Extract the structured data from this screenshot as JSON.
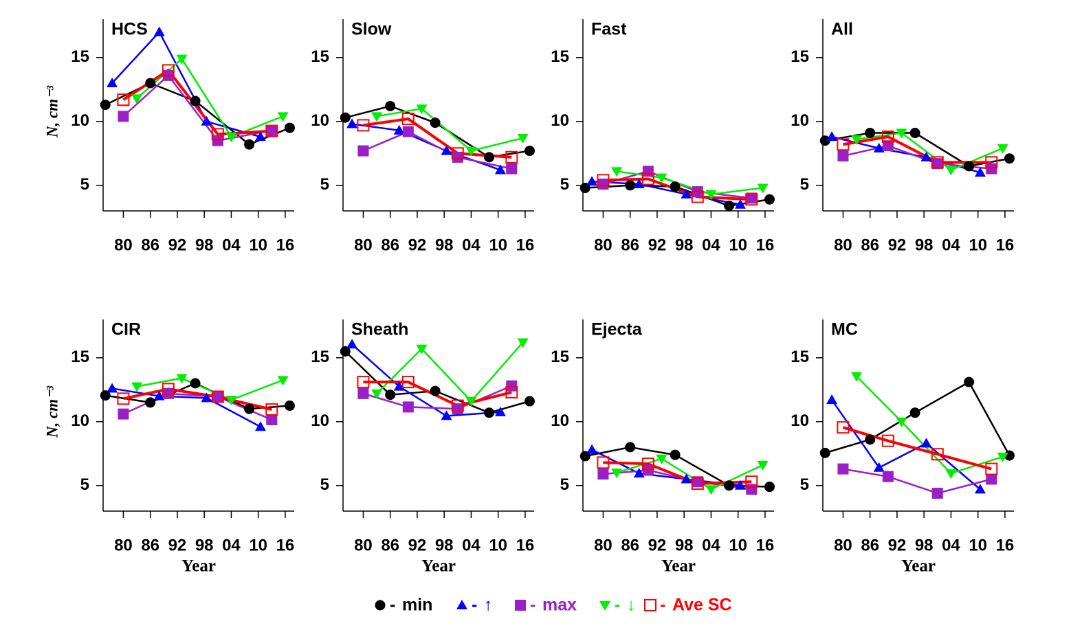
{
  "chart_data": [
    {
      "type": "line",
      "title": "HCS",
      "ylabel": "N, cm⁻³",
      "xlim": [
        1975.5,
        2018
      ],
      "ylim": [
        3,
        18
      ],
      "xticks": [
        {
          "value": 1980,
          "label": "80"
        },
        {
          "value": 1986,
          "label": "86"
        },
        {
          "value": 1992,
          "label": "92"
        },
        {
          "value": 1998,
          "label": "98"
        },
        {
          "value": 2004,
          "label": "04"
        },
        {
          "value": 2010,
          "label": "10"
        },
        {
          "value": 2016,
          "label": "16"
        }
      ],
      "yticks": [
        5,
        10,
        15
      ],
      "series": [
        {
          "name": "min",
          "color": "#000000",
          "marker": "circle",
          "x": [
            1976,
            1986,
            1996,
            2008,
            2017
          ],
          "values": [
            11.3,
            13.0,
            11.6,
            8.2,
            9.5
          ]
        },
        {
          "name": "↑",
          "color": "#0000ff",
          "marker": "triangle-up",
          "x": [
            1977.5,
            1988,
            1998.5,
            2010.5
          ],
          "values": [
            13.0,
            17.0,
            10.0,
            8.8
          ]
        },
        {
          "name": "max",
          "color": "#9b1fc8",
          "marker": "square",
          "x": [
            1980,
            1990,
            2001,
            2013
          ],
          "values": [
            10.4,
            13.6,
            8.5,
            9.3
          ]
        },
        {
          "name": "↓",
          "color": "#00ee00",
          "marker": "triangle-down",
          "x": [
            1983,
            1993,
            2004,
            2015.5
          ],
          "values": [
            11.8,
            14.9,
            8.8,
            10.4
          ]
        },
        {
          "name": "Ave SC",
          "color": "#ff0000",
          "marker": "square-open",
          "x": [
            1980,
            1990,
            2001,
            2013
          ],
          "values": [
            11.7,
            14.0,
            9.0,
            9.25
          ]
        }
      ]
    },
    {
      "type": "line",
      "title": "Slow",
      "xlim": [
        1975.5,
        2018
      ],
      "ylim": [
        3,
        18
      ],
      "xticks": [
        {
          "value": 1980,
          "label": "80"
        },
        {
          "value": 1986,
          "label": "86"
        },
        {
          "value": 1992,
          "label": "92"
        },
        {
          "value": 1998,
          "label": "98"
        },
        {
          "value": 2004,
          "label": "04"
        },
        {
          "value": 2010,
          "label": "10"
        },
        {
          "value": 2016,
          "label": "16"
        }
      ],
      "yticks": [
        5,
        10,
        15
      ],
      "series": [
        {
          "name": "min",
          "color": "#000000",
          "marker": "circle",
          "x": [
            1976,
            1986,
            1996,
            2008,
            2017
          ],
          "values": [
            10.3,
            11.2,
            9.9,
            7.2,
            7.7
          ]
        },
        {
          "name": "↑",
          "color": "#0000ff",
          "marker": "triangle-up",
          "x": [
            1977.5,
            1988,
            1998.5,
            2010.5
          ],
          "values": [
            9.8,
            9.3,
            7.7,
            6.2
          ]
        },
        {
          "name": "max",
          "color": "#9b1fc8",
          "marker": "square",
          "x": [
            1980,
            1990,
            2001,
            2013
          ],
          "values": [
            7.7,
            9.2,
            7.2,
            6.3
          ]
        },
        {
          "name": "↓",
          "color": "#00ee00",
          "marker": "triangle-down",
          "x": [
            1983,
            1993,
            2004,
            2015.5
          ],
          "values": [
            10.4,
            11.0,
            7.7,
            8.7
          ]
        },
        {
          "name": "Ave SC",
          "color": "#ff0000",
          "marker": "square-open",
          "x": [
            1980,
            1990,
            2001,
            2013
          ],
          "values": [
            9.7,
            10.2,
            7.5,
            7.2
          ]
        }
      ]
    },
    {
      "type": "line",
      "title": "Fast",
      "xlim": [
        1975.5,
        2018
      ],
      "ylim": [
        3,
        18
      ],
      "xticks": [
        {
          "value": 1980,
          "label": "80"
        },
        {
          "value": 1986,
          "label": "86"
        },
        {
          "value": 1992,
          "label": "92"
        },
        {
          "value": 1998,
          "label": "98"
        },
        {
          "value": 2004,
          "label": "04"
        },
        {
          "value": 2010,
          "label": "10"
        },
        {
          "value": 2016,
          "label": "16"
        }
      ],
      "yticks": [
        5,
        10,
        15
      ],
      "series": [
        {
          "name": "min",
          "color": "#000000",
          "marker": "circle",
          "x": [
            1976,
            1986,
            1996,
            2008,
            2017
          ],
          "values": [
            4.8,
            5.0,
            4.9,
            3.4,
            3.9
          ]
        },
        {
          "name": "↑",
          "color": "#0000ff",
          "marker": "triangle-up",
          "x": [
            1977.5,
            1988,
            1998.5,
            2010.5
          ],
          "values": [
            5.3,
            5.1,
            4.3,
            3.5
          ]
        },
        {
          "name": "max",
          "color": "#9b1fc8",
          "marker": "square",
          "x": [
            1980,
            1990,
            2001,
            2013
          ],
          "values": [
            5.1,
            6.1,
            4.5,
            4.0
          ]
        },
        {
          "name": "↓",
          "color": "#00ee00",
          "marker": "triangle-down",
          "x": [
            1983,
            1993,
            2004,
            2015.5
          ],
          "values": [
            6.1,
            5.6,
            4.3,
            4.8
          ]
        },
        {
          "name": "Ave SC",
          "color": "#ff0000",
          "marker": "square-open",
          "x": [
            1980,
            1990,
            2001,
            2013
          ],
          "values": [
            5.4,
            5.5,
            4.1,
            3.9
          ]
        }
      ]
    },
    {
      "type": "line",
      "title": "All",
      "xlim": [
        1975.5,
        2018
      ],
      "ylim": [
        3,
        18
      ],
      "xticks": [
        {
          "value": 1980,
          "label": "80"
        },
        {
          "value": 1986,
          "label": "86"
        },
        {
          "value": 1992,
          "label": "92"
        },
        {
          "value": 1998,
          "label": "98"
        },
        {
          "value": 2004,
          "label": "04"
        },
        {
          "value": 2010,
          "label": "10"
        },
        {
          "value": 2016,
          "label": "16"
        }
      ],
      "yticks": [
        5,
        10,
        15
      ],
      "series": [
        {
          "name": "min",
          "color": "#000000",
          "marker": "circle",
          "x": [
            1976,
            1986,
            1996,
            2008,
            2017
          ],
          "values": [
            8.5,
            9.1,
            9.1,
            6.5,
            7.1
          ]
        },
        {
          "name": "↑",
          "color": "#0000ff",
          "marker": "triangle-up",
          "x": [
            1977.5,
            1988,
            1998.5,
            2010.5
          ],
          "values": [
            8.8,
            7.9,
            7.2,
            6.0
          ]
        },
        {
          "name": "max",
          "color": "#9b1fc8",
          "marker": "square",
          "x": [
            1980,
            1990,
            2001,
            2013
          ],
          "values": [
            7.3,
            8.1,
            6.7,
            6.3
          ]
        },
        {
          "name": "↓",
          "color": "#00ee00",
          "marker": "triangle-down",
          "x": [
            1983,
            1993,
            2004,
            2015.5
          ],
          "values": [
            8.6,
            9.1,
            6.2,
            7.9
          ]
        },
        {
          "name": "Ave SC",
          "color": "#ff0000",
          "marker": "square-open",
          "x": [
            1980,
            1990,
            2001,
            2013
          ],
          "values": [
            8.2,
            8.8,
            6.8,
            6.8
          ]
        }
      ]
    },
    {
      "type": "line",
      "title": "CIR",
      "ylabel": "N, cm⁻³",
      "xlabel": "Year",
      "xlim": [
        1975.5,
        2018
      ],
      "ylim": [
        3,
        18
      ],
      "xticks": [
        {
          "value": 1980,
          "label": "80"
        },
        {
          "value": 1986,
          "label": "86"
        },
        {
          "value": 1992,
          "label": "92"
        },
        {
          "value": 1998,
          "label": "98"
        },
        {
          "value": 2004,
          "label": "04"
        },
        {
          "value": 2010,
          "label": "10"
        },
        {
          "value": 2016,
          "label": "16"
        }
      ],
      "yticks": [
        5,
        10,
        15
      ],
      "series": [
        {
          "name": "min",
          "color": "#000000",
          "marker": "circle",
          "x": [
            1976,
            1986,
            1996,
            2008,
            2017
          ],
          "values": [
            12.05,
            11.5,
            13.0,
            11.0,
            11.25
          ]
        },
        {
          "name": "↑",
          "color": "#0000ff",
          "marker": "triangle-up",
          "x": [
            1977.5,
            1988,
            1998.5,
            2010.5
          ],
          "values": [
            12.6,
            12.0,
            11.85,
            9.6
          ]
        },
        {
          "name": "max",
          "color": "#9b1fc8",
          "marker": "square",
          "x": [
            1980,
            1990,
            2001,
            2013
          ],
          "values": [
            10.6,
            12.2,
            11.95,
            10.15
          ]
        },
        {
          "name": "↓",
          "color": "#00ee00",
          "marker": "triangle-down",
          "x": [
            1983,
            1993,
            2004,
            2015.5
          ],
          "values": [
            12.75,
            13.4,
            11.7,
            13.25
          ]
        },
        {
          "name": "Ave SC",
          "color": "#ff0000",
          "marker": "square-open",
          "x": [
            1980,
            1990,
            2001,
            2013
          ],
          "values": [
            11.8,
            12.55,
            11.95,
            10.95
          ]
        }
      ]
    },
    {
      "type": "line",
      "title": "Sheath",
      "xlabel": "Year",
      "xlim": [
        1975.5,
        2018
      ],
      "ylim": [
        3,
        18
      ],
      "xticks": [
        {
          "value": 1980,
          "label": "80"
        },
        {
          "value": 1986,
          "label": "86"
        },
        {
          "value": 1992,
          "label": "92"
        },
        {
          "value": 1998,
          "label": "98"
        },
        {
          "value": 2004,
          "label": "04"
        },
        {
          "value": 2010,
          "label": "10"
        },
        {
          "value": 2016,
          "label": "16"
        }
      ],
      "yticks": [
        5,
        10,
        15
      ],
      "series": [
        {
          "name": "min",
          "color": "#000000",
          "marker": "circle",
          "x": [
            1976,
            1986,
            1996,
            2008,
            2017
          ],
          "values": [
            15.5,
            12.1,
            12.4,
            10.7,
            11.6
          ]
        },
        {
          "name": "↑",
          "color": "#0000ff",
          "marker": "triangle-up",
          "x": [
            1977.5,
            1988,
            1998.5,
            2010.5
          ],
          "values": [
            16.05,
            12.75,
            10.45,
            10.75
          ]
        },
        {
          "name": "max",
          "color": "#9b1fc8",
          "marker": "square",
          "x": [
            1980,
            1990,
            2001,
            2013
          ],
          "values": [
            12.2,
            11.15,
            11.0,
            12.8
          ]
        },
        {
          "name": "↓",
          "color": "#00ee00",
          "marker": "triangle-down",
          "x": [
            1983,
            1993,
            2004,
            2015.5
          ],
          "values": [
            12.2,
            15.7,
            11.6,
            16.2
          ]
        },
        {
          "name": "Ave SC",
          "color": "#ff0000",
          "marker": "square-open",
          "x": [
            1980,
            1990,
            2001,
            2013
          ],
          "values": [
            13.1,
            13.1,
            11.25,
            12.3
          ]
        }
      ]
    },
    {
      "type": "line",
      "title": "Ejecta",
      "xlabel": "Year",
      "xlim": [
        1975.5,
        2018
      ],
      "ylim": [
        3,
        18
      ],
      "xticks": [
        {
          "value": 1980,
          "label": "80"
        },
        {
          "value": 1986,
          "label": "86"
        },
        {
          "value": 1992,
          "label": "92"
        },
        {
          "value": 1998,
          "label": "98"
        },
        {
          "value": 2004,
          "label": "04"
        },
        {
          "value": 2010,
          "label": "10"
        },
        {
          "value": 2016,
          "label": "16"
        }
      ],
      "yticks": [
        5,
        10,
        15
      ],
      "series": [
        {
          "name": "min",
          "color": "#000000",
          "marker": "circle",
          "x": [
            1976,
            1986,
            1996,
            2008,
            2017
          ],
          "values": [
            7.3,
            8.0,
            7.4,
            5.0,
            4.9
          ]
        },
        {
          "name": "↑",
          "color": "#0000ff",
          "marker": "triangle-up",
          "x": [
            1977.5,
            1988,
            1998.5,
            2010.5
          ],
          "values": [
            7.8,
            5.95,
            5.5,
            5.0
          ]
        },
        {
          "name": "max",
          "color": "#9b1fc8",
          "marker": "square",
          "x": [
            1980,
            1990,
            2001,
            2013
          ],
          "values": [
            5.9,
            6.2,
            5.3,
            4.7
          ]
        },
        {
          "name": "↓",
          "color": "#00ee00",
          "marker": "triangle-down",
          "x": [
            1983,
            1993,
            2004,
            2015.5
          ],
          "values": [
            6.0,
            7.1,
            4.7,
            6.6
          ]
        },
        {
          "name": "Ave SC",
          "color": "#ff0000",
          "marker": "square-open",
          "x": [
            1980,
            1990,
            2001,
            2013
          ],
          "values": [
            6.8,
            6.7,
            5.15,
            5.3
          ]
        }
      ]
    },
    {
      "type": "line",
      "title": "MC",
      "xlabel": "Year",
      "xlim": [
        1975.5,
        2018
      ],
      "ylim": [
        3,
        18
      ],
      "xticks": [
        {
          "value": 1980,
          "label": "80"
        },
        {
          "value": 1986,
          "label": "86"
        },
        {
          "value": 1992,
          "label": "92"
        },
        {
          "value": 1998,
          "label": "98"
        },
        {
          "value": 2004,
          "label": "04"
        },
        {
          "value": 2010,
          "label": "10"
        },
        {
          "value": 2016,
          "label": "16"
        }
      ],
      "yticks": [
        5,
        10,
        15
      ],
      "series": [
        {
          "name": "min",
          "color": "#000000",
          "marker": "circle",
          "x": [
            1976,
            1986,
            1996,
            2008,
            2017
          ],
          "values": [
            7.55,
            8.6,
            10.7,
            13.1,
            7.35
          ]
        },
        {
          "name": "↑",
          "color": "#0000ff",
          "marker": "triangle-up",
          "x": [
            1977.5,
            1988,
            1998.5,
            2010.5
          ],
          "values": [
            11.7,
            6.4,
            8.3,
            4.7
          ]
        },
        {
          "name": "max",
          "color": "#9b1fc8",
          "marker": "square",
          "x": [
            1980,
            1990,
            2001,
            2013
          ],
          "values": [
            6.3,
            5.7,
            4.4,
            5.5
          ]
        },
        {
          "name": "↓",
          "color": "#00ee00",
          "marker": "triangle-down",
          "x": [
            1983,
            1993,
            2004,
            2015.5
          ],
          "values": [
            13.55,
            10.0,
            5.95,
            7.25
          ]
        },
        {
          "name": "Ave SC",
          "color": "#ff0000",
          "marker": "square-open",
          "x": [
            1980,
            1990,
            2001,
            2013
          ],
          "values": [
            9.55,
            8.5,
            7.45,
            6.3
          ]
        }
      ]
    }
  ]
}
